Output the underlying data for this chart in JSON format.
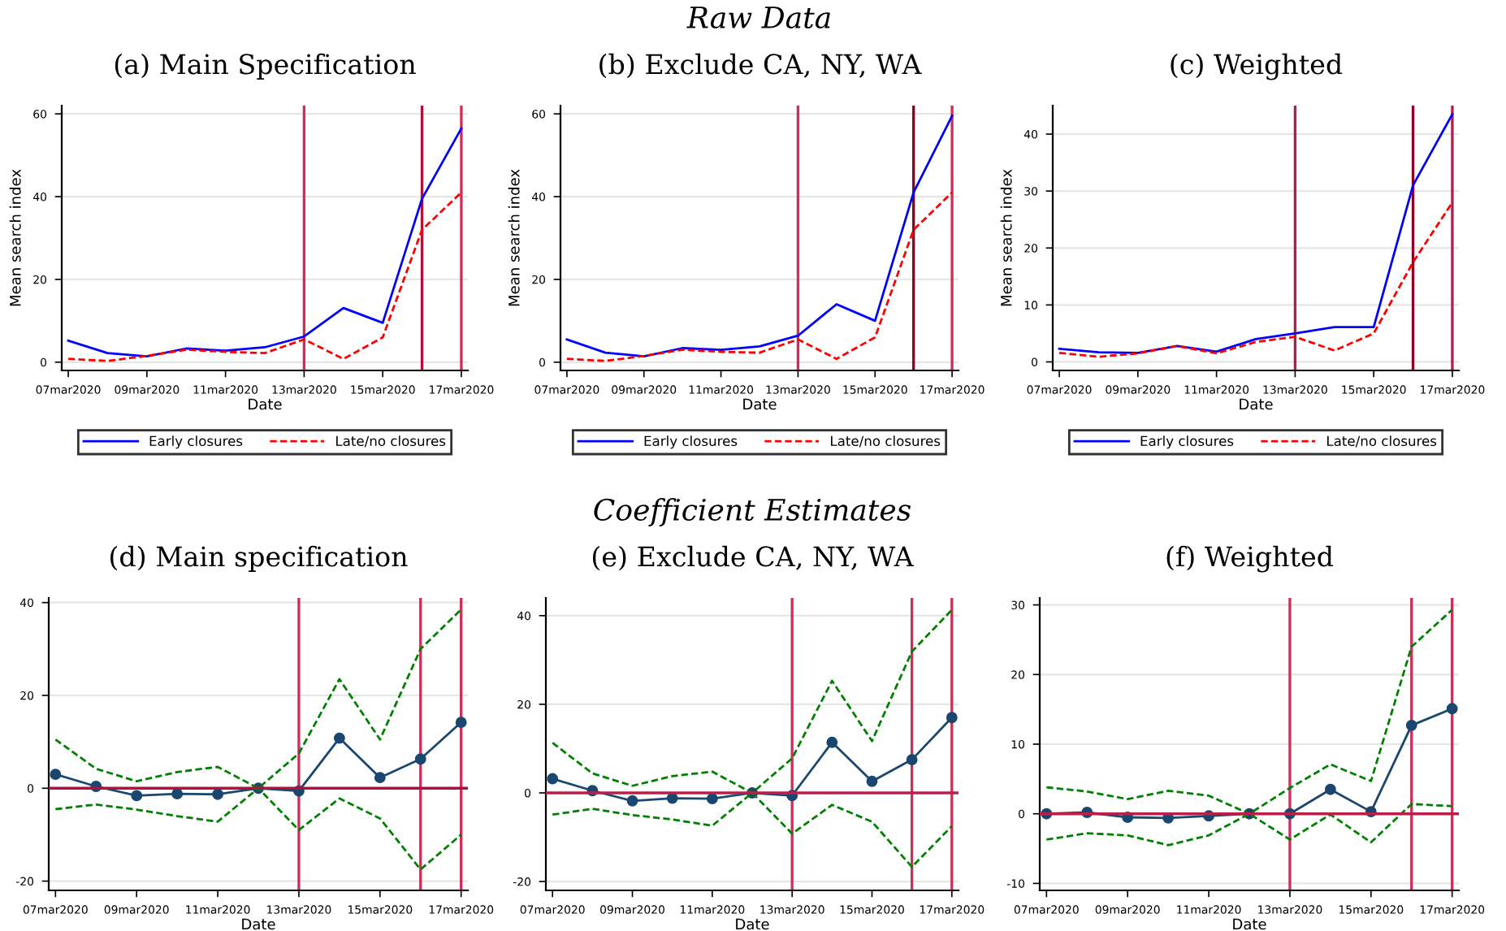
{
  "chart_data": [
    {
      "type": "line",
      "title": "(a) Main Specification",
      "xlabel": "Date",
      "ylabel": "Mean search index",
      "x": [
        "2020-03-07",
        "2020-03-08",
        "2020-03-09",
        "2020-03-10",
        "2020-03-11",
        "2020-03-12",
        "2020-03-13",
        "2020-03-14",
        "2020-03-15",
        "2020-03-16",
        "2020-03-17"
      ],
      "series": [
        {
          "name": "Early closures",
          "color": "#0000ff",
          "line_style": "solid",
          "values": [
            5.2,
            2.2,
            1.4,
            3.3,
            2.8,
            3.6,
            6.2,
            13.1,
            9.5,
            39.5,
            56.5
          ]
        },
        {
          "name": "Late/no closures",
          "color": "#ff0000",
          "line_style": "dashed",
          "values": [
            0.8,
            0.3,
            1.5,
            3.0,
            2.5,
            2.2,
            5.5,
            0.8,
            6.0,
            32,
            41
          ]
        }
      ],
      "xlim": [
        "2020-03-06T20:00",
        "2020-03-17T04:00"
      ],
      "xticks": [
        {
          "value": "2020-03-07",
          "label": "07mar2020"
        },
        {
          "value": "2020-03-09",
          "label": "09mar2020"
        },
        {
          "value": "2020-03-11",
          "label": "11mar2020"
        },
        {
          "value": "2020-03-13",
          "label": "13mar2020"
        },
        {
          "value": "2020-03-15",
          "label": "15mar2020"
        },
        {
          "value": "2020-03-17",
          "label": "17mar2020"
        }
      ],
      "ylim": [
        -2,
        62
      ],
      "yticks": [
        0,
        20,
        40,
        60
      ],
      "grid": "y",
      "legend": "bottom",
      "ref_lines": [
        {
          "axis": "x",
          "value": "2020-03-13",
          "color": "#c8315a"
        },
        {
          "axis": "x",
          "value": "2020-03-16",
          "color": "#b0103a"
        },
        {
          "axis": "x",
          "value": "2020-03-17",
          "color": "#c8315a"
        }
      ]
    },
    {
      "type": "line",
      "title": "(b) Exclude CA, NY, WA",
      "xlabel": "Date",
      "ylabel": "Mean search index",
      "annotations": [
        "Raw Data"
      ],
      "x": [
        "2020-03-07",
        "2020-03-08",
        "2020-03-09",
        "2020-03-10",
        "2020-03-11",
        "2020-03-12",
        "2020-03-13",
        "2020-03-14",
        "2020-03-15",
        "2020-03-16",
        "2020-03-17"
      ],
      "series": [
        {
          "name": "Early closures",
          "color": "#0000ff",
          "line_style": "solid",
          "values": [
            5.5,
            2.3,
            1.4,
            3.4,
            3.0,
            3.8,
            6.4,
            14,
            10,
            41,
            59.5
          ]
        },
        {
          "name": "Late/no closures",
          "color": "#ff0000",
          "line_style": "dashed",
          "values": [
            0.8,
            0.3,
            1.5,
            3.0,
            2.5,
            2.3,
            5.5,
            0.8,
            6.0,
            32,
            41
          ]
        }
      ],
      "xlim": [
        "2020-03-06T20:00",
        "2020-03-17T04:00"
      ],
      "xticks": [
        {
          "value": "2020-03-07",
          "label": "07mar2020"
        },
        {
          "value": "2020-03-09",
          "label": "09mar2020"
        },
        {
          "value": "2020-03-11",
          "label": "11mar2020"
        },
        {
          "value": "2020-03-13",
          "label": "13mar2020"
        },
        {
          "value": "2020-03-15",
          "label": "15mar2020"
        },
        {
          "value": "2020-03-17",
          "label": "17mar2020"
        }
      ],
      "ylim": [
        -2,
        62
      ],
      "yticks": [
        0,
        20,
        40,
        60
      ],
      "grid": "y",
      "legend": "bottom",
      "ref_lines": [
        {
          "axis": "x",
          "value": "2020-03-13",
          "color": "#c8315a"
        },
        {
          "axis": "x",
          "value": "2020-03-16",
          "color": "#900020"
        },
        {
          "axis": "x",
          "value": "2020-03-17",
          "color": "#c8315a"
        }
      ]
    },
    {
      "type": "line",
      "title": "(c) Weighted",
      "xlabel": "Date",
      "ylabel": "Mean search index",
      "x": [
        "2020-03-07",
        "2020-03-08",
        "2020-03-09",
        "2020-03-10",
        "2020-03-11",
        "2020-03-12",
        "2020-03-13",
        "2020-03-14",
        "2020-03-15",
        "2020-03-16",
        "2020-03-17"
      ],
      "series": [
        {
          "name": "Early closures",
          "color": "#0000ff",
          "line_style": "solid",
          "values": [
            2.3,
            1.7,
            1.6,
            2.8,
            1.8,
            4.0,
            5.0,
            6.1,
            6.1,
            31,
            43.5
          ]
        },
        {
          "name": "Late/no closures",
          "color": "#ff0000",
          "line_style": "dashed",
          "values": [
            1.6,
            0.9,
            1.5,
            2.8,
            1.5,
            3.5,
            4.4,
            2.0,
            5.0,
            17.5,
            28
          ]
        }
      ],
      "xlim": [
        "2020-03-06T20:00",
        "2020-03-17T04:00"
      ],
      "xticks": [
        {
          "value": "2020-03-07",
          "label": "07mar2020"
        },
        {
          "value": "2020-03-09",
          "label": "09mar2020"
        },
        {
          "value": "2020-03-11",
          "label": "11mar2020"
        },
        {
          "value": "2020-03-13",
          "label": "13mar2020"
        },
        {
          "value": "2020-03-15",
          "label": "15mar2020"
        },
        {
          "value": "2020-03-17",
          "label": "17mar2020"
        }
      ],
      "ylim": [
        -1.5,
        45
      ],
      "yticks": [
        0,
        10,
        20,
        30,
        40
      ],
      "grid": "y",
      "legend": "bottom",
      "ref_lines": [
        {
          "axis": "x",
          "value": "2020-03-13",
          "color": "#b0204a"
        },
        {
          "axis": "x",
          "value": "2020-03-16",
          "color": "#900020"
        },
        {
          "axis": "x",
          "value": "2020-03-17",
          "color": "#b0204a"
        }
      ]
    },
    {
      "type": "line",
      "title": "(d) Main specification",
      "xlabel": "Date",
      "x": [
        "2020-03-07",
        "2020-03-08",
        "2020-03-09",
        "2020-03-10",
        "2020-03-11",
        "2020-03-12",
        "2020-03-13",
        "2020-03-14",
        "2020-03-15",
        "2020-03-16",
        "2020-03-17"
      ],
      "series": [
        {
          "color": "#1a476f",
          "line_style": "solid",
          "marker": "circle",
          "values": [
            3.0,
            0.4,
            -1.6,
            -1.2,
            -1.3,
            0,
            -0.6,
            10.8,
            2.3,
            6.3,
            14.2
          ]
        },
        {
          "color": "#008000",
          "line_style": "dashed",
          "values": [
            10.5,
            4.2,
            1.5,
            3.5,
            4.6,
            0,
            7.5,
            23.5,
            10.5,
            30,
            38.5
          ]
        },
        {
          "color": "#008000",
          "line_style": "dashed",
          "values": [
            -4.5,
            -3.5,
            -4.6,
            -6,
            -7.2,
            0,
            -9,
            -2.2,
            -6.5,
            -17.5,
            -10
          ]
        }
      ],
      "xlim": [
        "2020-03-06T20:00",
        "2020-03-17T04:00"
      ],
      "xticks": [
        {
          "value": "2020-03-07",
          "label": "07mar2020"
        },
        {
          "value": "2020-03-09",
          "label": "09mar2020"
        },
        {
          "value": "2020-03-11",
          "label": "11mar2020"
        },
        {
          "value": "2020-03-13",
          "label": "13mar2020"
        },
        {
          "value": "2020-03-15",
          "label": "15mar2020"
        },
        {
          "value": "2020-03-17",
          "label": "17mar2020"
        }
      ],
      "ylim": [
        -22,
        41
      ],
      "yticks": [
        -20,
        0,
        20,
        40
      ],
      "grid": "y",
      "ref_lines": [
        {
          "axis": "x",
          "value": "2020-03-13",
          "color": "#c8315a"
        },
        {
          "axis": "x",
          "value": "2020-03-16",
          "color": "#c8315a"
        },
        {
          "axis": "x",
          "value": "2020-03-17",
          "color": "#c8315a"
        },
        {
          "axis": "y",
          "value": 0,
          "color": "#b0103a"
        }
      ]
    },
    {
      "type": "line",
      "title": "(e) Exclude CA, NY, WA",
      "xlabel": "Date",
      "annotations": [
        "Coefficient Estimates"
      ],
      "x": [
        "2020-03-07",
        "2020-03-08",
        "2020-03-09",
        "2020-03-10",
        "2020-03-11",
        "2020-03-12",
        "2020-03-13",
        "2020-03-14",
        "2020-03-15",
        "2020-03-16",
        "2020-03-17"
      ],
      "series": [
        {
          "color": "#1a476f",
          "line_style": "solid",
          "marker": "circle",
          "values": [
            3.2,
            0.5,
            -1.8,
            -1.2,
            -1.3,
            0,
            -0.6,
            11.4,
            2.6,
            7.5,
            17.0
          ]
        },
        {
          "color": "#008000",
          "line_style": "dashed",
          "values": [
            11.3,
            4.4,
            1.6,
            3.8,
            4.8,
            0,
            7.8,
            25.3,
            11.7,
            31.9,
            41.3
          ]
        },
        {
          "color": "#008000",
          "line_style": "dashed",
          "values": [
            -4.9,
            -3.6,
            -5.0,
            -6.0,
            -7.4,
            0,
            -9.2,
            -2.7,
            -6.5,
            -16.7,
            -7.5
          ]
        }
      ],
      "xlim": [
        "2020-03-06T20:00",
        "2020-03-17T04:00"
      ],
      "xticks": [
        {
          "value": "2020-03-07",
          "label": "07mar2020"
        },
        {
          "value": "2020-03-09",
          "label": "09mar2020"
        },
        {
          "value": "2020-03-11",
          "label": "11mar2020"
        },
        {
          "value": "2020-03-13",
          "label": "13mar2020"
        },
        {
          "value": "2020-03-15",
          "label": "15mar2020"
        },
        {
          "value": "2020-03-17",
          "label": "17mar2020"
        }
      ],
      "ylim": [
        -22,
        44
      ],
      "yticks": [
        -20,
        0,
        20,
        40
      ],
      "grid": "y",
      "ref_lines": [
        {
          "axis": "x",
          "value": "2020-03-13",
          "color": "#c8315a"
        },
        {
          "axis": "x",
          "value": "2020-03-16",
          "color": "#c8315a"
        },
        {
          "axis": "x",
          "value": "2020-03-17",
          "color": "#c8315a"
        },
        {
          "axis": "y",
          "value": 0,
          "color": "#b8204a"
        }
      ]
    },
    {
      "type": "line",
      "title": "(f) Weighted",
      "xlabel": "Date",
      "x": [
        "2020-03-07",
        "2020-03-08",
        "2020-03-09",
        "2020-03-10",
        "2020-03-11",
        "2020-03-12",
        "2020-03-13",
        "2020-03-14",
        "2020-03-15",
        "2020-03-16",
        "2020-03-17"
      ],
      "series": [
        {
          "color": "#1a476f",
          "line_style": "solid",
          "marker": "circle",
          "values": [
            0,
            0.2,
            -0.5,
            -0.6,
            -0.3,
            0,
            0,
            3.5,
            0.3,
            12.7,
            15.1
          ]
        },
        {
          "color": "#008000",
          "line_style": "dashed",
          "values": [
            3.8,
            3.2,
            2.1,
            3.3,
            2.6,
            0,
            3.7,
            7.1,
            4.7,
            24,
            29.3
          ]
        },
        {
          "color": "#008000",
          "line_style": "dashed",
          "values": [
            -3.7,
            -2.8,
            -3.1,
            -4.5,
            -3.1,
            0,
            -3.7,
            -0.1,
            -4.1,
            1.4,
            1.1
          ]
        }
      ],
      "xlim": [
        "2020-03-06T20:00",
        "2020-03-17T04:00"
      ],
      "xticks": [
        {
          "value": "2020-03-07",
          "label": "07mar2020"
        },
        {
          "value": "2020-03-09",
          "label": "09mar2020"
        },
        {
          "value": "2020-03-11",
          "label": "11mar2020"
        },
        {
          "value": "2020-03-13",
          "label": "13mar2020"
        },
        {
          "value": "2020-03-15",
          "label": "15mar2020"
        },
        {
          "value": "2020-03-17",
          "label": "17mar2020"
        }
      ],
      "ylim": [
        -11,
        31
      ],
      "yticks": [
        -10,
        0,
        10,
        20,
        30
      ],
      "grid": "y",
      "ref_lines": [
        {
          "axis": "x",
          "value": "2020-03-13",
          "color": "#c8315a"
        },
        {
          "axis": "x",
          "value": "2020-03-16",
          "color": "#c8315a"
        },
        {
          "axis": "x",
          "value": "2020-03-17",
          "color": "#c8315a"
        },
        {
          "axis": "y",
          "value": 0,
          "color": "#b8204a"
        }
      ]
    }
  ]
}
